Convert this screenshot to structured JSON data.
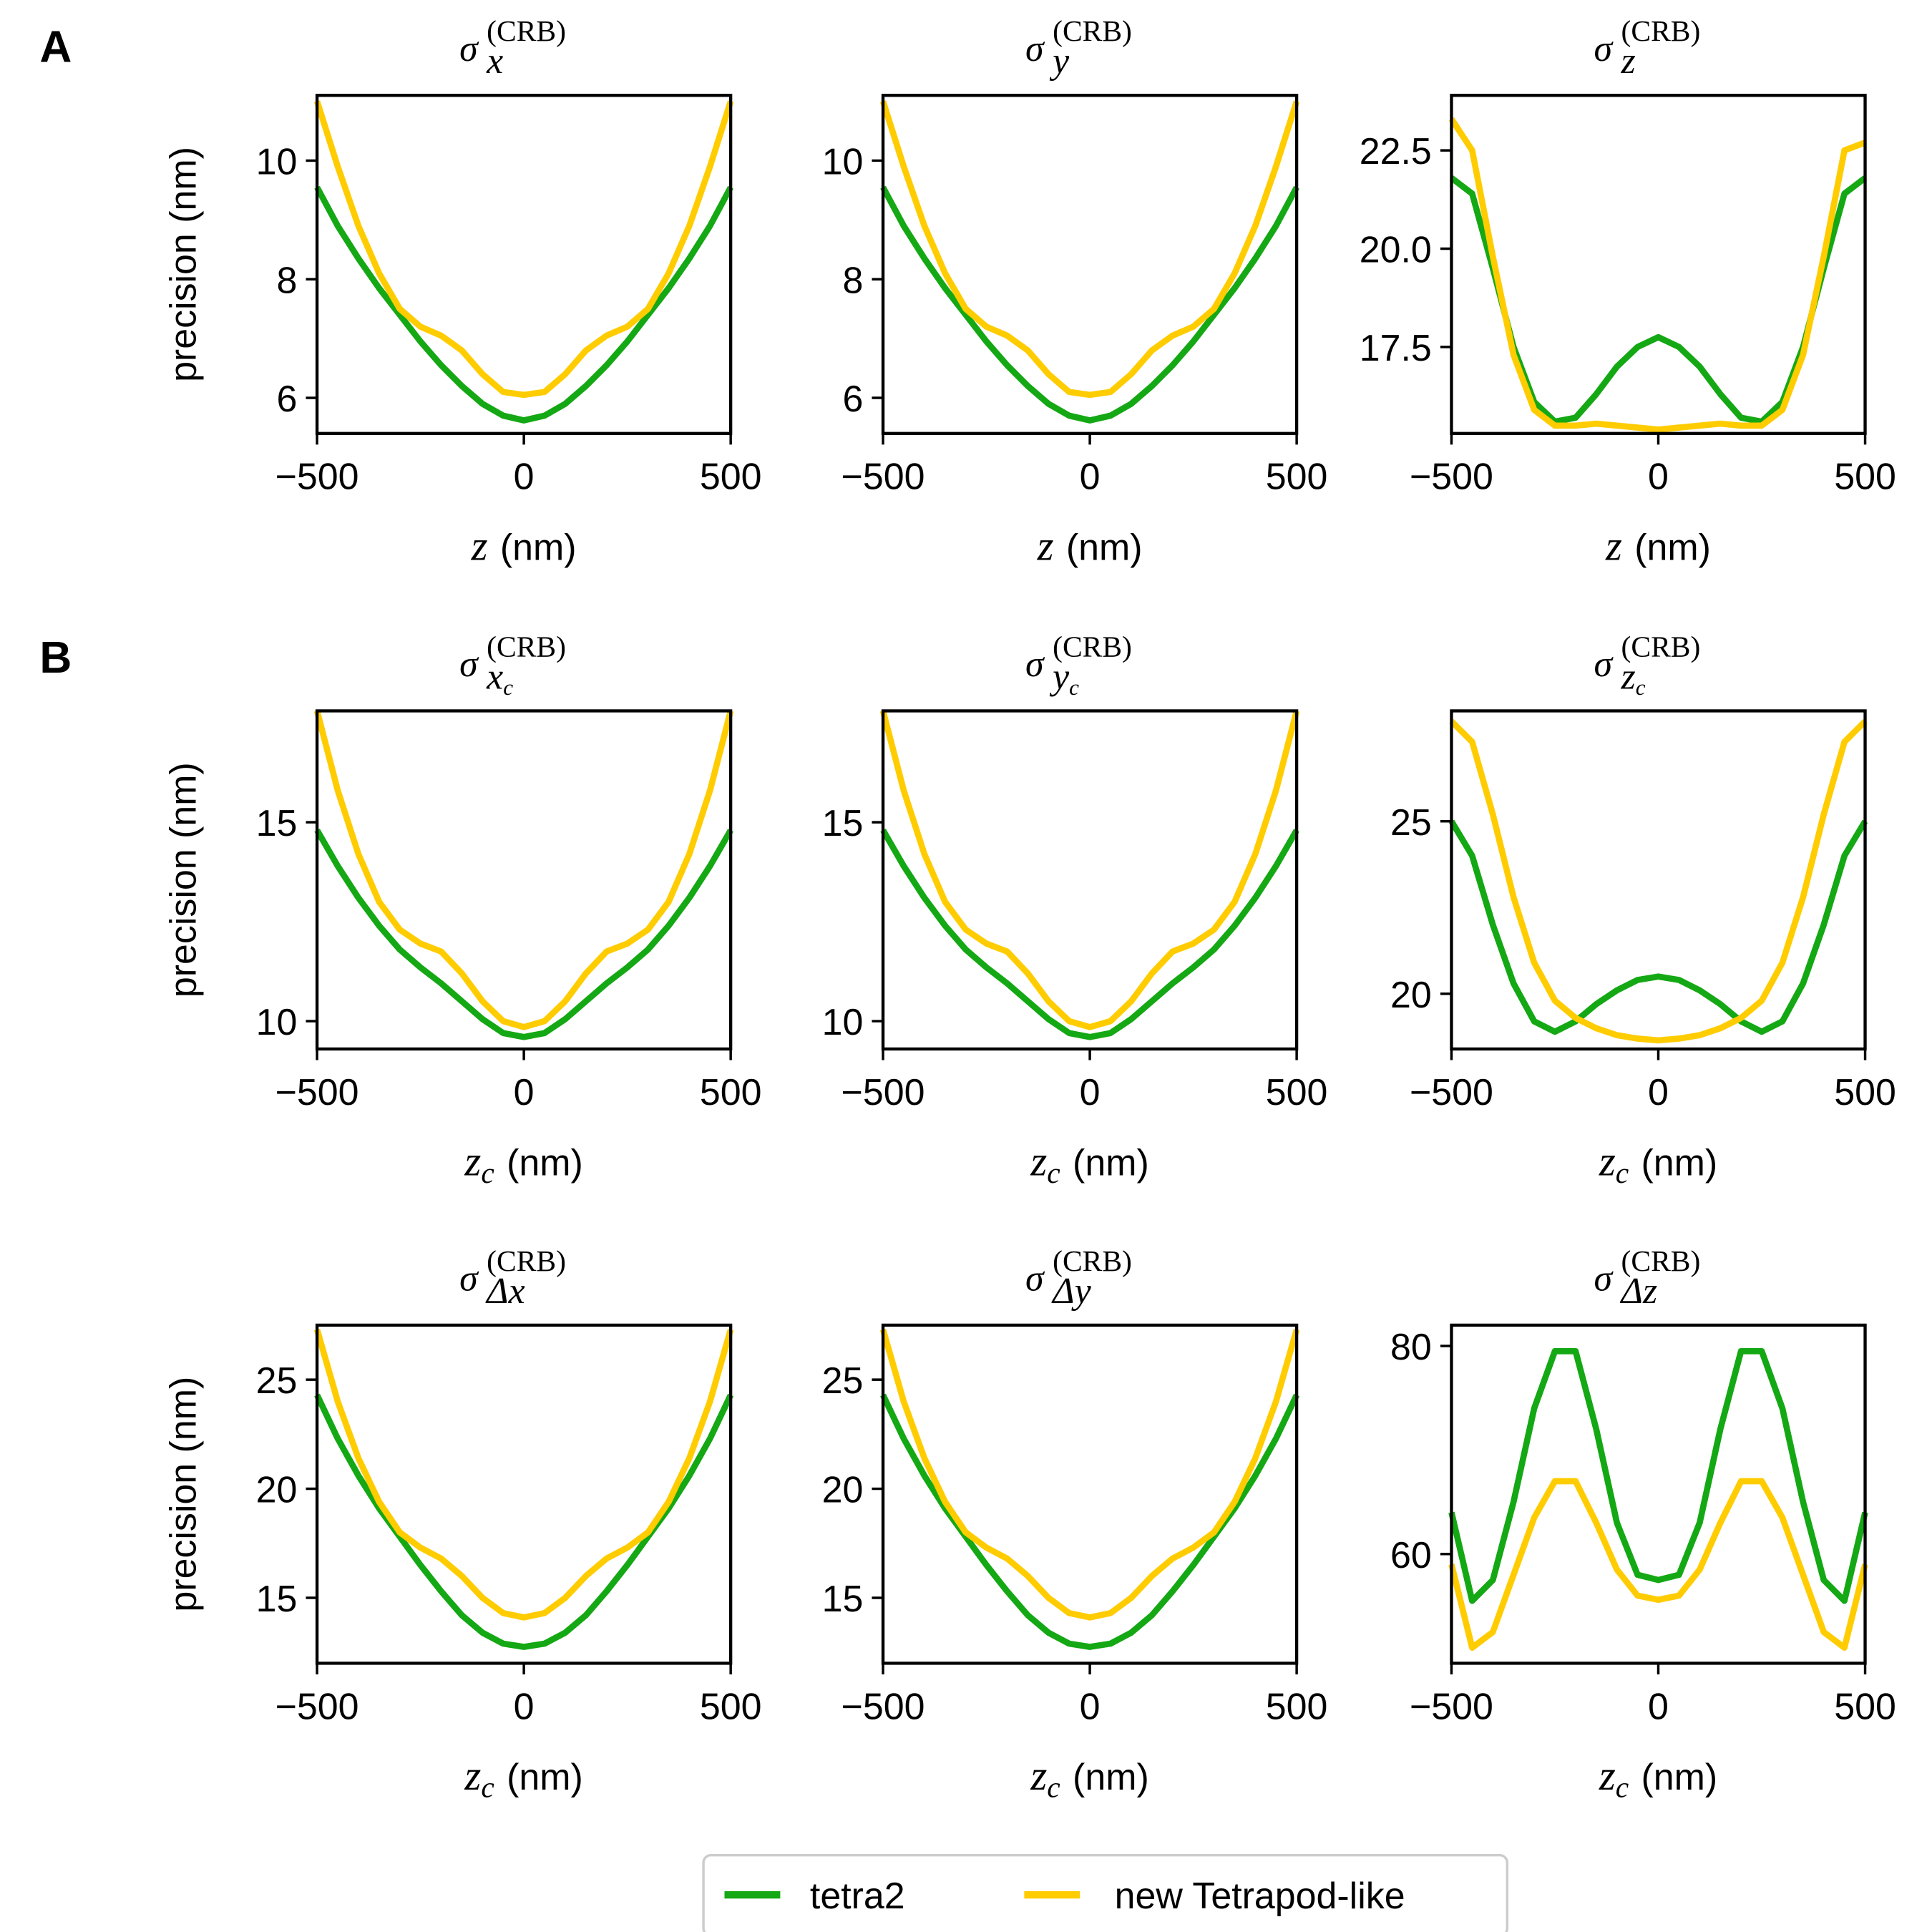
{
  "panel_labels": [
    "A",
    "B"
  ],
  "chart_data": [
    {
      "type": "line",
      "title": {
        "symbol": "σ",
        "sub": "x",
        "sup": "(CRB)"
      },
      "ylabel": "precision (nm)",
      "xlabel": {
        "var": "z",
        "unit": "(nm)"
      },
      "x": [
        -500,
        -450,
        -400,
        -350,
        -300,
        -250,
        -200,
        -150,
        -100,
        -50,
        0,
        50,
        100,
        150,
        200,
        250,
        300,
        350,
        400,
        450,
        500
      ],
      "xlim": [
        -500,
        500
      ],
      "xticks": [
        {
          "value": -500,
          "label": "−500"
        },
        0,
        500
      ],
      "ylim": [
        5.4,
        11.1
      ],
      "yticks": [
        6,
        8,
        10
      ],
      "series": [
        {
          "name": "tetra2",
          "color": "#14a814",
          "values": [
            9.55,
            8.9,
            8.35,
            7.85,
            7.4,
            6.95,
            6.55,
            6.2,
            5.9,
            5.7,
            5.62,
            5.7,
            5.9,
            6.2,
            6.55,
            6.95,
            7.4,
            7.85,
            8.35,
            8.9,
            9.55
          ]
        },
        {
          "name": "new Tetrapod-like",
          "color": "#ffcc00",
          "values": [
            11.0,
            9.9,
            8.9,
            8.1,
            7.5,
            7.2,
            7.05,
            6.8,
            6.4,
            6.1,
            6.05,
            6.1,
            6.4,
            6.8,
            7.05,
            7.2,
            7.5,
            8.1,
            8.9,
            9.9,
            11.0
          ]
        }
      ]
    },
    {
      "type": "line",
      "title": {
        "symbol": "σ",
        "sub": "y",
        "sup": "(CRB)"
      },
      "xlabel": {
        "var": "z",
        "unit": "(nm)"
      },
      "x": [
        -500,
        -450,
        -400,
        -350,
        -300,
        -250,
        -200,
        -150,
        -100,
        -50,
        0,
        50,
        100,
        150,
        200,
        250,
        300,
        350,
        400,
        450,
        500
      ],
      "xlim": [
        -500,
        500
      ],
      "xticks": [
        {
          "value": -500,
          "label": "−500"
        },
        0,
        500
      ],
      "ylim": [
        5.4,
        11.1
      ],
      "yticks": [
        6,
        8,
        10
      ],
      "series": [
        {
          "name": "tetra2",
          "color": "#14a814",
          "values": [
            9.55,
            8.9,
            8.35,
            7.85,
            7.4,
            6.95,
            6.55,
            6.2,
            5.9,
            5.7,
            5.62,
            5.7,
            5.9,
            6.2,
            6.55,
            6.95,
            7.4,
            7.85,
            8.35,
            8.9,
            9.55
          ]
        },
        {
          "name": "new Tetrapod-like",
          "color": "#ffcc00",
          "values": [
            11.0,
            9.9,
            8.9,
            8.1,
            7.5,
            7.2,
            7.05,
            6.8,
            6.4,
            6.1,
            6.05,
            6.1,
            6.4,
            6.8,
            7.05,
            7.2,
            7.5,
            8.1,
            8.9,
            9.9,
            11.0
          ]
        }
      ]
    },
    {
      "type": "line",
      "title": {
        "symbol": "σ",
        "sub": "z",
        "sup": "(CRB)"
      },
      "xlabel": {
        "var": "z",
        "unit": "(nm)"
      },
      "x": [
        -500,
        -450,
        -400,
        -350,
        -300,
        -250,
        -200,
        -150,
        -100,
        -50,
        0,
        50,
        100,
        150,
        200,
        250,
        300,
        350,
        400,
        450,
        500
      ],
      "xlim": [
        -500,
        500
      ],
      "xticks": [
        {
          "value": -500,
          "label": "−500"
        },
        0,
        500
      ],
      "ylim": [
        15.3,
        23.9
      ],
      "yticks": [
        17.5,
        20.0,
        22.5
      ],
      "series": [
        {
          "name": "tetra2",
          "color": "#14a814",
          "values": [
            21.8,
            21.4,
            19.5,
            17.5,
            16.1,
            15.6,
            15.7,
            16.3,
            17.0,
            17.5,
            17.75,
            17.5,
            17.0,
            16.3,
            15.7,
            15.6,
            16.1,
            17.5,
            19.5,
            21.4,
            21.8
          ]
        },
        {
          "name": "new Tetrapod-like",
          "color": "#ffcc00",
          "values": [
            23.3,
            22.5,
            19.8,
            17.3,
            15.9,
            15.5,
            15.5,
            15.55,
            15.5,
            15.45,
            15.4,
            15.45,
            15.5,
            15.55,
            15.5,
            15.5,
            15.9,
            17.3,
            19.8,
            22.5,
            22.7
          ]
        }
      ]
    },
    {
      "type": "line",
      "title": {
        "symbol": "σ",
        "sub": "x",
        "sub2": "c",
        "sup": "(CRB)"
      },
      "ylabel": "precision (nm)",
      "xlabel": {
        "var": "z",
        "sub": "c",
        "unit": "(nm)"
      },
      "x": [
        -500,
        -450,
        -400,
        -350,
        -300,
        -250,
        -200,
        -150,
        -100,
        -50,
        0,
        50,
        100,
        150,
        200,
        250,
        300,
        350,
        400,
        450,
        500
      ],
      "xlim": [
        -500,
        500
      ],
      "xticks": [
        {
          "value": -500,
          "label": "−500"
        },
        0,
        500
      ],
      "ylim": [
        9.3,
        17.8
      ],
      "yticks": [
        10,
        15
      ],
      "series": [
        {
          "name": "tetra2",
          "color": "#14a814",
          "values": [
            14.8,
            13.9,
            13.1,
            12.4,
            11.8,
            11.35,
            10.95,
            10.5,
            10.05,
            9.7,
            9.6,
            9.7,
            10.05,
            10.5,
            10.95,
            11.35,
            11.8,
            12.4,
            13.1,
            13.9,
            14.8
          ]
        },
        {
          "name": "new Tetrapod-like",
          "color": "#ffcc00",
          "values": [
            17.8,
            15.8,
            14.2,
            13.0,
            12.3,
            11.95,
            11.75,
            11.2,
            10.5,
            10.0,
            9.85,
            10.0,
            10.5,
            11.2,
            11.75,
            11.95,
            12.3,
            13.0,
            14.2,
            15.8,
            17.8
          ]
        }
      ]
    },
    {
      "type": "line",
      "title": {
        "symbol": "σ",
        "sub": "y",
        "sub2": "c",
        "sup": "(CRB)"
      },
      "xlabel": {
        "var": "z",
        "sub": "c",
        "unit": "(nm)"
      },
      "x": [
        -500,
        -450,
        -400,
        -350,
        -300,
        -250,
        -200,
        -150,
        -100,
        -50,
        0,
        50,
        100,
        150,
        200,
        250,
        300,
        350,
        400,
        450,
        500
      ],
      "xlim": [
        -500,
        500
      ],
      "xticks": [
        {
          "value": -500,
          "label": "−500"
        },
        0,
        500
      ],
      "ylim": [
        9.3,
        17.8
      ],
      "yticks": [
        10,
        15
      ],
      "series": [
        {
          "name": "tetra2",
          "color": "#14a814",
          "values": [
            14.8,
            13.9,
            13.1,
            12.4,
            11.8,
            11.35,
            10.95,
            10.5,
            10.05,
            9.7,
            9.6,
            9.7,
            10.05,
            10.5,
            10.95,
            11.35,
            11.8,
            12.4,
            13.1,
            13.9,
            14.8
          ]
        },
        {
          "name": "new Tetrapod-like",
          "color": "#ffcc00",
          "values": [
            17.8,
            15.8,
            14.2,
            13.0,
            12.3,
            11.95,
            11.75,
            11.2,
            10.5,
            10.0,
            9.85,
            10.0,
            10.5,
            11.2,
            11.75,
            11.95,
            12.3,
            13.0,
            14.2,
            15.8,
            17.8
          ]
        }
      ]
    },
    {
      "type": "line",
      "title": {
        "symbol": "σ",
        "sub": "z",
        "sub2": "c",
        "sup": "(CRB)"
      },
      "xlabel": {
        "var": "z",
        "sub": "c",
        "unit": "(nm)"
      },
      "x": [
        -500,
        -450,
        -400,
        -350,
        -300,
        -250,
        -200,
        -150,
        -100,
        -50,
        0,
        50,
        100,
        150,
        200,
        250,
        300,
        350,
        400,
        450,
        500
      ],
      "xlim": [
        -500,
        500
      ],
      "xticks": [
        {
          "value": -500,
          "label": "−500"
        },
        0,
        500
      ],
      "ylim": [
        18.4,
        28.2
      ],
      "yticks": [
        20,
        25
      ],
      "series": [
        {
          "name": "tetra2",
          "color": "#14a814",
          "values": [
            25.0,
            24.0,
            22.0,
            20.3,
            19.2,
            18.9,
            19.2,
            19.7,
            20.1,
            20.4,
            20.5,
            20.4,
            20.1,
            19.7,
            19.2,
            18.9,
            19.2,
            20.3,
            22.0,
            24.0,
            25.0
          ]
        },
        {
          "name": "new Tetrapod-like",
          "color": "#ffcc00",
          "values": [
            27.9,
            27.3,
            25.2,
            22.8,
            20.9,
            19.8,
            19.3,
            19.0,
            18.8,
            18.7,
            18.65,
            18.7,
            18.8,
            19.0,
            19.3,
            19.8,
            20.9,
            22.8,
            25.2,
            27.3,
            27.9
          ]
        }
      ]
    },
    {
      "type": "line",
      "title": {
        "symbol": "σ",
        "sub": "Δx",
        "sup": "(CRB)"
      },
      "ylabel": "precision (nm)",
      "xlabel": {
        "var": "z",
        "sub": "c",
        "unit": "(nm)"
      },
      "x": [
        -500,
        -450,
        -400,
        -350,
        -300,
        -250,
        -200,
        -150,
        -100,
        -50,
        0,
        50,
        100,
        150,
        200,
        250,
        300,
        350,
        400,
        450,
        500
      ],
      "xlim": [
        -500,
        500
      ],
      "xticks": [
        {
          "value": -500,
          "label": "−500"
        },
        0,
        500
      ],
      "ylim": [
        12.0,
        27.5
      ],
      "yticks": [
        15,
        20,
        25
      ],
      "series": [
        {
          "name": "tetra2",
          "color": "#14a814",
          "values": [
            24.3,
            22.3,
            20.6,
            19.1,
            17.8,
            16.5,
            15.3,
            14.2,
            13.4,
            12.9,
            12.75,
            12.9,
            13.4,
            14.2,
            15.3,
            16.5,
            17.8,
            19.1,
            20.6,
            22.3,
            24.3
          ]
        },
        {
          "name": "new Tetrapod-like",
          "color": "#ffcc00",
          "values": [
            27.3,
            24.0,
            21.4,
            19.4,
            18.0,
            17.3,
            16.8,
            16.0,
            15.0,
            14.3,
            14.1,
            14.3,
            15.0,
            16.0,
            16.8,
            17.3,
            18.0,
            19.4,
            21.4,
            24.0,
            27.3
          ]
        }
      ]
    },
    {
      "type": "line",
      "title": {
        "symbol": "σ",
        "sub": "Δy",
        "sup": "(CRB)"
      },
      "xlabel": {
        "var": "z",
        "sub": "c",
        "unit": "(nm)"
      },
      "x": [
        -500,
        -450,
        -400,
        -350,
        -300,
        -250,
        -200,
        -150,
        -100,
        -50,
        0,
        50,
        100,
        150,
        200,
        250,
        300,
        350,
        400,
        450,
        500
      ],
      "xlim": [
        -500,
        500
      ],
      "xticks": [
        {
          "value": -500,
          "label": "−500"
        },
        0,
        500
      ],
      "ylim": [
        12.0,
        27.5
      ],
      "yticks": [
        15,
        20,
        25
      ],
      "series": [
        {
          "name": "tetra2",
          "color": "#14a814",
          "values": [
            24.3,
            22.3,
            20.6,
            19.1,
            17.8,
            16.5,
            15.3,
            14.2,
            13.4,
            12.9,
            12.75,
            12.9,
            13.4,
            14.2,
            15.3,
            16.5,
            17.8,
            19.1,
            20.6,
            22.3,
            24.3
          ]
        },
        {
          "name": "new Tetrapod-like",
          "color": "#ffcc00",
          "values": [
            27.3,
            24.0,
            21.4,
            19.4,
            18.0,
            17.3,
            16.8,
            16.0,
            15.0,
            14.3,
            14.1,
            14.3,
            15.0,
            16.0,
            16.8,
            17.3,
            18.0,
            19.4,
            21.4,
            24.0,
            27.3
          ]
        }
      ]
    },
    {
      "type": "line",
      "title": {
        "symbol": "σ",
        "sub": "Δz",
        "sup": "(CRB)"
      },
      "xlabel": {
        "var": "z",
        "sub": "c",
        "unit": "(nm)"
      },
      "x": [
        -500,
        -450,
        -400,
        -350,
        -300,
        -250,
        -200,
        -150,
        -100,
        -50,
        0,
        50,
        100,
        150,
        200,
        250,
        300,
        350,
        400,
        450,
        500
      ],
      "xlim": [
        -500,
        500
      ],
      "xticks": [
        {
          "value": -500,
          "label": "−500"
        },
        0,
        500
      ],
      "ylim": [
        49.5,
        82
      ],
      "yticks": [
        60,
        80
      ],
      "series": [
        {
          "name": "tetra2",
          "color": "#14a814",
          "values": [
            64,
            55.5,
            57.5,
            65,
            74,
            79.5,
            79.5,
            72,
            63,
            58,
            57.5,
            58,
            63,
            72,
            79.5,
            79.5,
            74,
            65,
            57.5,
            55.5,
            64
          ]
        },
        {
          "name": "new Tetrapod-like",
          "color": "#ffcc00",
          "values": [
            59,
            51,
            52.5,
            58,
            63.5,
            67,
            67,
            63,
            58.5,
            56,
            55.6,
            56,
            58.5,
            63,
            67,
            67,
            63.5,
            58,
            52.5,
            51,
            59
          ]
        }
      ]
    }
  ]
}
